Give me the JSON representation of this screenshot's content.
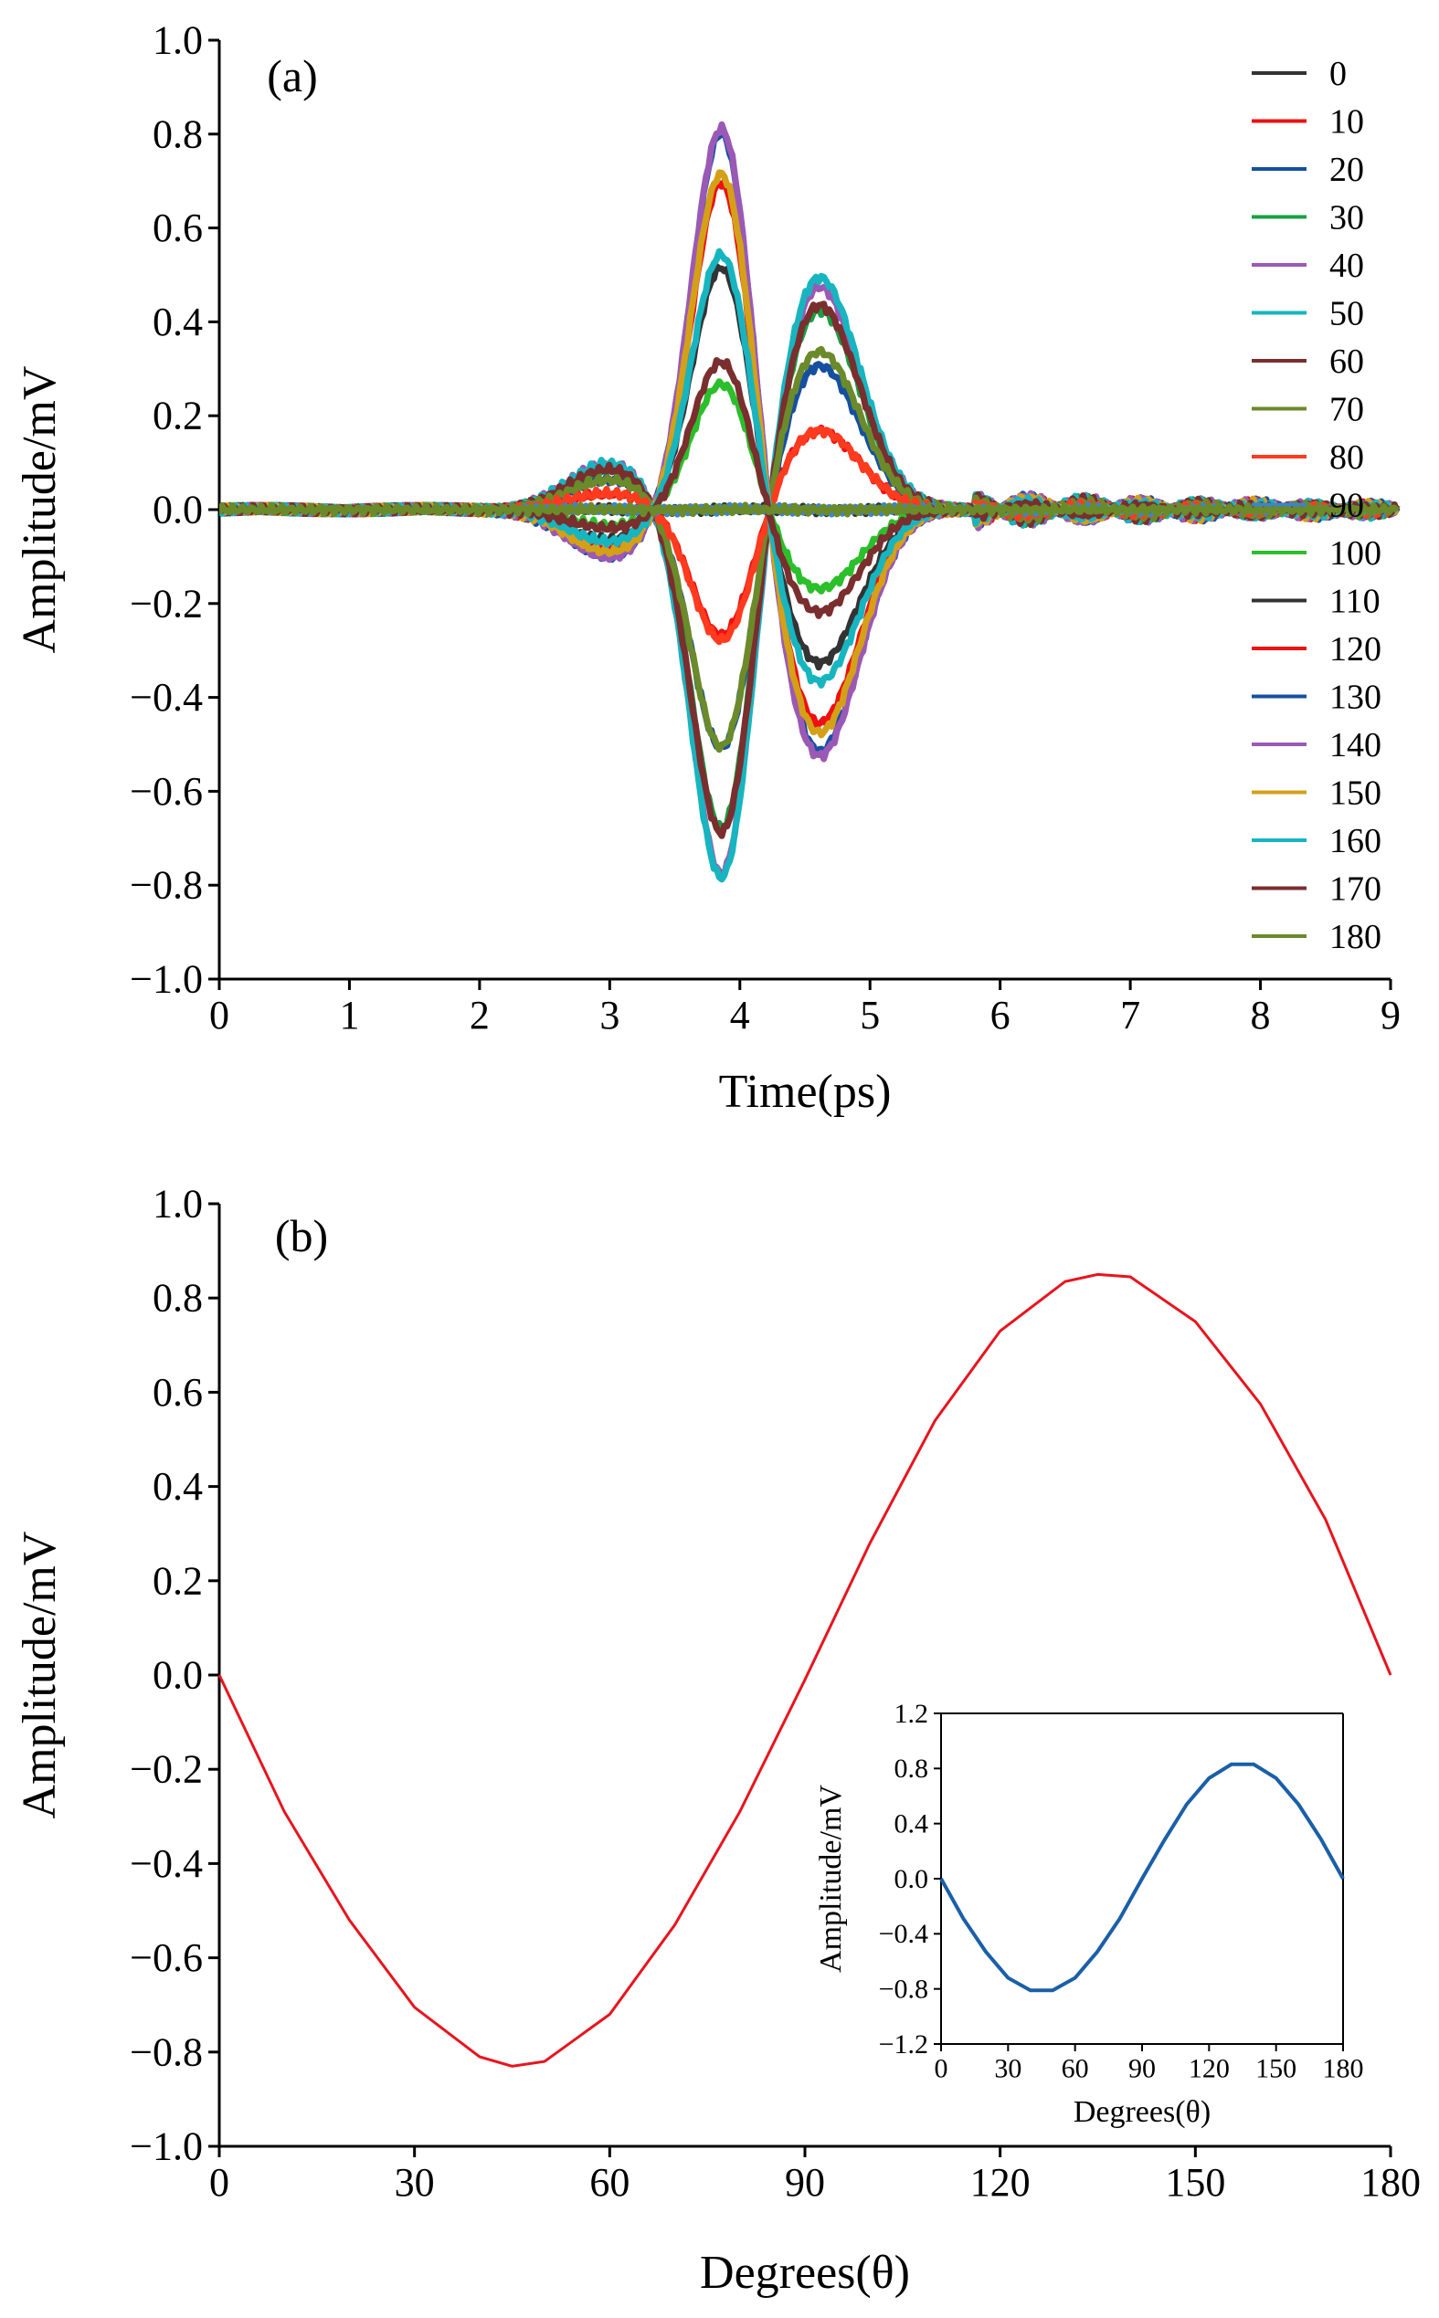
{
  "chart_data": [
    {
      "panel_label": "(a)",
      "type": "line",
      "xlabel": "Time(ps)",
      "ylabel": "Amplitude/mV",
      "xlim": [
        0,
        9
      ],
      "ylim": [
        -1.0,
        1.0
      ],
      "x_ticks": [
        "0",
        "1",
        "2",
        "3",
        "4",
        "5",
        "6",
        "7",
        "8",
        "9"
      ],
      "y_ticks": [
        "1.0",
        "0.8",
        "0.6",
        "0.4",
        "0.2",
        "0.0",
        "−0.2",
        "−0.4",
        "−0.6",
        "−0.8",
        "−1.0"
      ],
      "legend_position": "top-right",
      "waveform_shape": {
        "early_lobe_at_ps": 3.0,
        "main_peak_at_ps": 3.87,
        "second_peak_at_ps": 4.6,
        "ringing_after_ps": 6.0
      },
      "series": [
        {
          "name": "0",
          "color": "#333333",
          "amp": 0.0,
          "peak1": 0.0,
          "peak2": 0.0
        },
        {
          "name": "10",
          "color": "#ee1111",
          "amp": -0.28,
          "peak1": -0.28,
          "peak2": 0.17
        },
        {
          "name": "20",
          "color": "#1550a0",
          "amp": -0.53,
          "peak1": -0.53,
          "peak2": 0.31
        },
        {
          "name": "30",
          "color": "#17a043",
          "amp": -0.71,
          "peak1": -0.71,
          "peak2": 0.43
        },
        {
          "name": "40",
          "color": "#9b59b6",
          "amp": -0.81,
          "peak1": -0.81,
          "peak2": 0.48
        },
        {
          "name": "50",
          "color": "#17b5c0",
          "amp": -0.82,
          "peak1": -0.82,
          "peak2": 0.5
        },
        {
          "name": "60",
          "color": "#7a2e2e",
          "amp": -0.72,
          "peak1": -0.72,
          "peak2": 0.44
        },
        {
          "name": "70",
          "color": "#6b8a2a",
          "amp": -0.53,
          "peak1": -0.53,
          "peak2": 0.34
        },
        {
          "name": "80",
          "color": "#ff3b1f",
          "amp": -0.29,
          "peak1": -0.29,
          "peak2": 0.17
        },
        {
          "name": "90",
          "color": "#3a86c8",
          "amp": 0.0,
          "peak1": 0.0,
          "peak2": 0.0
        },
        {
          "name": "100",
          "color": "#2bbf2b",
          "amp": 0.28,
          "peak1": 0.28,
          "peak2": -0.17
        },
        {
          "name": "110",
          "color": "#333333",
          "amp": 0.54,
          "peak1": 0.54,
          "peak2": -0.33
        },
        {
          "name": "120",
          "color": "#ee1111",
          "amp": 0.73,
          "peak1": 0.73,
          "peak2": -0.46
        },
        {
          "name": "130",
          "color": "#1550a0",
          "amp": 0.84,
          "peak1": 0.84,
          "peak2": -0.52
        },
        {
          "name": "140",
          "color": "#9b59b6",
          "amp": 0.85,
          "peak1": 0.85,
          "peak2": -0.53
        },
        {
          "name": "150",
          "color": "#d4a017",
          "amp": 0.75,
          "peak1": 0.75,
          "peak2": -0.48
        },
        {
          "name": "160",
          "color": "#17b5c0",
          "amp": 0.57,
          "peak1": 0.57,
          "peak2": -0.37
        },
        {
          "name": "170",
          "color": "#7a2e2e",
          "amp": 0.33,
          "peak1": 0.33,
          "peak2": -0.22
        },
        {
          "name": "180",
          "color": "#6b8a2a",
          "amp": 0.0,
          "peak1": 0.0,
          "peak2": 0.0
        }
      ]
    },
    {
      "panel_label": "(b)",
      "type": "line",
      "xlabel": "Degrees(θ)",
      "ylabel": "Amplitude/mV",
      "xlim": [
        0,
        180
      ],
      "ylim": [
        -1.0,
        1.0
      ],
      "x_ticks": [
        "0",
        "30",
        "60",
        "90",
        "120",
        "150",
        "180"
      ],
      "y_ticks": [
        "1.0",
        "0.8",
        "0.6",
        "0.4",
        "0.2",
        "0.0",
        "−0.2",
        "−0.4",
        "−0.6",
        "−0.8",
        "−1.0"
      ],
      "series": [
        {
          "color": "#e8141e",
          "x": [
            0,
            10,
            20,
            30,
            40,
            45,
            50,
            60,
            70,
            80,
            90,
            100,
            110,
            120,
            130,
            135,
            140,
            150,
            160,
            170,
            180
          ],
          "y": [
            0.0,
            -0.29,
            -0.52,
            -0.705,
            -0.81,
            -0.83,
            -0.82,
            -0.72,
            -0.53,
            -0.29,
            -0.01,
            0.28,
            0.54,
            0.73,
            0.835,
            0.85,
            0.845,
            0.75,
            0.575,
            0.33,
            0.0
          ]
        }
      ]
    },
    {
      "panel_label": "",
      "type": "line",
      "inset_of": "(b)",
      "xlabel": "Degrees(θ)",
      "ylabel": "Amplitude/mV",
      "xlim": [
        0,
        180
      ],
      "ylim": [
        -1.2,
        1.2
      ],
      "x_ticks": [
        "0",
        "30",
        "60",
        "90",
        "120",
        "150",
        "180"
      ],
      "y_ticks": [
        "1.2",
        "0.8",
        "0.4",
        "0.0",
        "−0.4",
        "−0.8",
        "−1.2"
      ],
      "series": [
        {
          "color": "#1a5fa8",
          "x": [
            0,
            10,
            20,
            30,
            40,
            50,
            60,
            70,
            80,
            90,
            100,
            110,
            120,
            130,
            140,
            150,
            160,
            170,
            180
          ],
          "y": [
            0.0,
            -0.29,
            -0.53,
            -0.72,
            -0.81,
            -0.81,
            -0.72,
            -0.53,
            -0.29,
            0.0,
            0.28,
            0.54,
            0.73,
            0.83,
            0.83,
            0.73,
            0.54,
            0.29,
            0.0
          ]
        }
      ]
    }
  ]
}
